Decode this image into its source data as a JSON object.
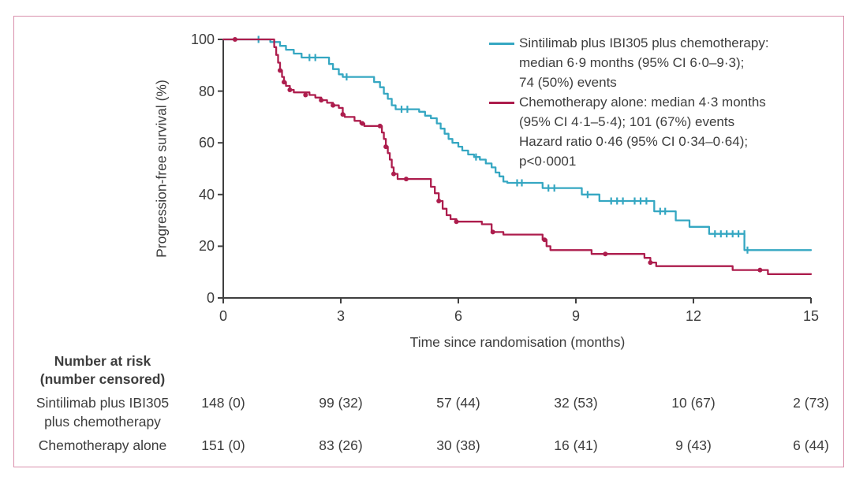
{
  "palette": {
    "sintilimab_teal": "#35a7c2",
    "chemo_crimson": "#ad1d4d",
    "axis": "#404040",
    "text": "#3d3d3d",
    "frame_pink": "#d990ac"
  },
  "chart_data": {
    "type": "line",
    "subtype": "kaplan-meier-step",
    "xlabel": "Time since randomisation (months)",
    "ylabel": "Progression-free survival (%)",
    "xlim": [
      0,
      15
    ],
    "ylim": [
      0,
      100
    ],
    "x_ticks": [
      0,
      3,
      6,
      9,
      12,
      15
    ],
    "y_ticks": [
      0,
      20,
      40,
      60,
      80,
      100
    ],
    "x_tick_labels": [
      "0",
      "3",
      "6",
      "9",
      "12",
      "15"
    ],
    "y_tick_labels": [
      "0",
      "20",
      "40",
      "60",
      "80",
      "100"
    ],
    "grid": false,
    "legend_position": "top-right",
    "series": [
      {
        "name": "Sintilimab plus IBI305 plus chemotherapy",
        "color": "#35a7c2",
        "median_months": "6·9",
        "median_ci": "6·0–9·3",
        "events": "74 (50%)",
        "censor_marker": "tick",
        "steps": [
          [
            0,
            100
          ],
          [
            1.2,
            99
          ],
          [
            1.45,
            97.5
          ],
          [
            1.6,
            96
          ],
          [
            1.8,
            94.5
          ],
          [
            2.0,
            93
          ],
          [
            2.7,
            90.5
          ],
          [
            2.8,
            88.5
          ],
          [
            2.95,
            86.5
          ],
          [
            3.05,
            85.5
          ],
          [
            3.85,
            83.5
          ],
          [
            4.0,
            81.5
          ],
          [
            4.1,
            79
          ],
          [
            4.2,
            77
          ],
          [
            4.3,
            74.5
          ],
          [
            4.4,
            73
          ],
          [
            5.0,
            72
          ],
          [
            5.15,
            70.5
          ],
          [
            5.3,
            69.5
          ],
          [
            5.45,
            67.5
          ],
          [
            5.55,
            65.5
          ],
          [
            5.65,
            63.5
          ],
          [
            5.75,
            61.5
          ],
          [
            5.85,
            60
          ],
          [
            6.0,
            58.5
          ],
          [
            6.1,
            57
          ],
          [
            6.25,
            55.5
          ],
          [
            6.4,
            54.5
          ],
          [
            6.55,
            53.5
          ],
          [
            6.7,
            52
          ],
          [
            6.85,
            50.5
          ],
          [
            6.95,
            48.5
          ],
          [
            7.05,
            47
          ],
          [
            7.15,
            45
          ],
          [
            7.25,
            44.5
          ],
          [
            8.15,
            42.5
          ],
          [
            9.15,
            40
          ],
          [
            9.6,
            37.5
          ],
          [
            11.0,
            33.5
          ],
          [
            11.55,
            30
          ],
          [
            11.9,
            27.5
          ],
          [
            12.4,
            24.8
          ],
          [
            13.3,
            18.5
          ],
          [
            15,
            18.5
          ]
        ],
        "censors": [
          [
            0.9,
            100
          ],
          [
            2.2,
            93
          ],
          [
            2.35,
            93
          ],
          [
            3.15,
            85.5
          ],
          [
            4.55,
            73
          ],
          [
            4.7,
            73
          ],
          [
            6.45,
            54.5
          ],
          [
            7.5,
            44.5
          ],
          [
            7.62,
            44.5
          ],
          [
            8.3,
            42.5
          ],
          [
            8.45,
            42.5
          ],
          [
            9.3,
            40
          ],
          [
            9.9,
            37.5
          ],
          [
            10.05,
            37.5
          ],
          [
            10.2,
            37.5
          ],
          [
            10.5,
            37.5
          ],
          [
            10.65,
            37.5
          ],
          [
            10.8,
            37.5
          ],
          [
            11.15,
            33.5
          ],
          [
            11.28,
            33.5
          ],
          [
            12.55,
            24.8
          ],
          [
            12.7,
            24.8
          ],
          [
            12.85,
            24.8
          ],
          [
            13.0,
            24.8
          ],
          [
            13.15,
            24.8
          ],
          [
            13.3,
            24.8
          ],
          [
            13.38,
            18.5
          ]
        ]
      },
      {
        "name": "Chemotherapy alone",
        "color": "#ad1d4d",
        "median_months": "4·3",
        "median_ci": "4·1–5·4",
        "events": "101 (67%)",
        "censor_marker": "dot",
        "steps": [
          [
            0,
            100
          ],
          [
            1.3,
            97
          ],
          [
            1.35,
            94
          ],
          [
            1.4,
            91
          ],
          [
            1.45,
            88
          ],
          [
            1.5,
            85.5
          ],
          [
            1.55,
            83.5
          ],
          [
            1.6,
            82
          ],
          [
            1.7,
            80.5
          ],
          [
            1.8,
            79.5
          ],
          [
            2.2,
            78.5
          ],
          [
            2.35,
            77.5
          ],
          [
            2.5,
            76.5
          ],
          [
            2.65,
            75.5
          ],
          [
            2.8,
            74.5
          ],
          [
            2.95,
            73.5
          ],
          [
            3.05,
            71
          ],
          [
            3.1,
            70
          ],
          [
            3.35,
            68.5
          ],
          [
            3.5,
            67.5
          ],
          [
            3.6,
            66.5
          ],
          [
            4.05,
            64
          ],
          [
            4.1,
            61.5
          ],
          [
            4.15,
            58.5
          ],
          [
            4.2,
            56
          ],
          [
            4.25,
            53.5
          ],
          [
            4.3,
            50.5
          ],
          [
            4.35,
            48
          ],
          [
            4.45,
            46
          ],
          [
            5.3,
            43
          ],
          [
            5.4,
            40.5
          ],
          [
            5.5,
            37.5
          ],
          [
            5.6,
            34.5
          ],
          [
            5.7,
            32
          ],
          [
            5.8,
            30.5
          ],
          [
            5.95,
            29.5
          ],
          [
            6.6,
            28.5
          ],
          [
            6.85,
            25.5
          ],
          [
            7.15,
            24.5
          ],
          [
            8.15,
            22.5
          ],
          [
            8.25,
            20
          ],
          [
            8.35,
            18.5
          ],
          [
            9.4,
            17
          ],
          [
            10.75,
            15.5
          ],
          [
            10.9,
            13.7
          ],
          [
            11.05,
            12.3
          ],
          [
            13.0,
            10.8
          ],
          [
            13.9,
            9.2
          ],
          [
            15,
            9.2
          ]
        ],
        "censors": [
          [
            0.3,
            100
          ],
          [
            1.45,
            88
          ],
          [
            1.55,
            83.5
          ],
          [
            1.7,
            80.5
          ],
          [
            2.1,
            78.5
          ],
          [
            2.5,
            76.5
          ],
          [
            2.8,
            74.5
          ],
          [
            3.05,
            71
          ],
          [
            3.55,
            67.5
          ],
          [
            4.0,
            66.5
          ],
          [
            4.15,
            58.5
          ],
          [
            4.35,
            48
          ],
          [
            4.67,
            46
          ],
          [
            5.5,
            37.5
          ],
          [
            5.95,
            29.5
          ],
          [
            6.88,
            25.5
          ],
          [
            8.2,
            22.5
          ],
          [
            9.75,
            17
          ],
          [
            10.9,
            13.7
          ],
          [
            13.7,
            10.8
          ]
        ]
      }
    ]
  },
  "legend": {
    "items": [
      {
        "color": "#35a7c2",
        "lines": [
          "Sintilimab plus IBI305 plus chemotherapy:",
          "median 6·9 months (95% CI 6·0–9·3);",
          "74 (50%) events"
        ]
      },
      {
        "color": "#ad1d4d",
        "lines": [
          "Chemotherapy alone: median 4·3 months",
          "(95% CI 4·1–5·4); 101 (67%) events",
          "Hazard ratio 0·46 (95% CI 0·34–0·64);",
          "p<0·0001"
        ]
      }
    ]
  },
  "risk_table": {
    "header_line1": "Number at risk",
    "header_line2": "(number censored)",
    "rows": [
      {
        "label_line1": "Sintilimab plus IBI305",
        "label_line2": "plus chemotherapy",
        "values": [
          "148 (0)",
          "99 (32)",
          "57 (44)",
          "32 (53)",
          "10 (67)",
          "2 (73)"
        ]
      },
      {
        "label_line1": "Chemotherapy alone",
        "label_line2": "",
        "values": [
          "151 (0)",
          "83 (26)",
          "30 (38)",
          "16 (41)",
          "9 (43)",
          "6 (44)"
        ]
      }
    ]
  }
}
